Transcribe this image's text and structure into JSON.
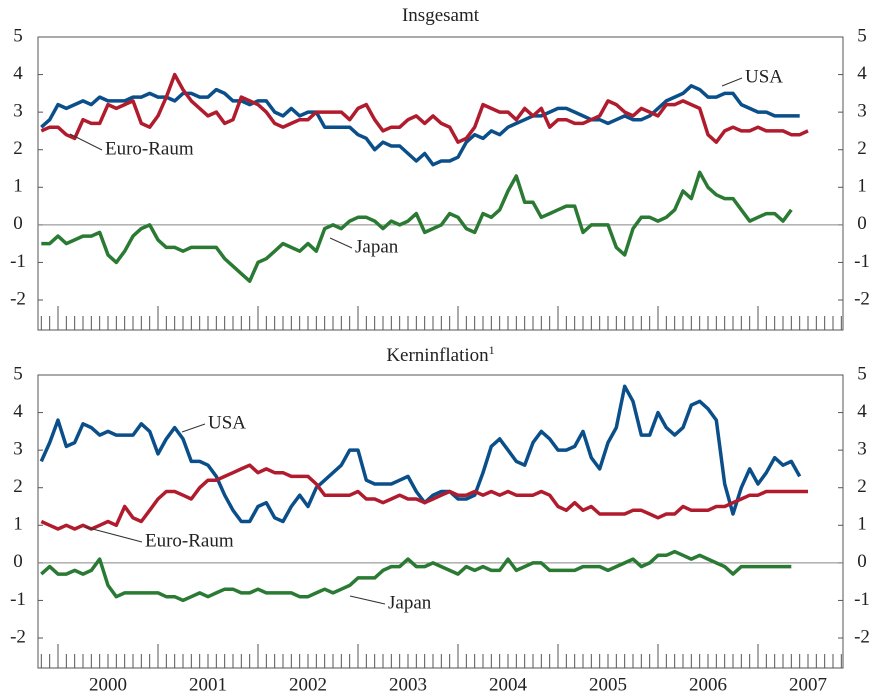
{
  "chart_data": [
    {
      "type": "line",
      "title": "Insgesamt",
      "x": [
        1999.833,
        1999.917,
        2000,
        2000.083,
        2000.167,
        2000.25,
        2000.333,
        2000.417,
        2000.5,
        2000.583,
        2000.667,
        2000.75,
        2000.833,
        2000.917,
        2001,
        2001.083,
        2001.167,
        2001.25,
        2001.333,
        2001.417,
        2001.5,
        2001.583,
        2001.667,
        2001.75,
        2001.833,
        2001.917,
        2002,
        2002.083,
        2002.167,
        2002.25,
        2002.333,
        2002.417,
        2002.5,
        2002.583,
        2002.667,
        2002.75,
        2002.833,
        2002.917,
        2003,
        2003.083,
        2003.167,
        2003.25,
        2003.333,
        2003.417,
        2003.5,
        2003.583,
        2003.667,
        2003.75,
        2003.833,
        2003.917,
        2004,
        2004.083,
        2004.167,
        2004.25,
        2004.333,
        2004.417,
        2004.5,
        2004.583,
        2004.667,
        2004.75,
        2004.833,
        2004.917,
        2005,
        2005.083,
        2005.167,
        2005.25,
        2005.333,
        2005.417,
        2005.5,
        2005.583,
        2005.667,
        2005.75,
        2005.833,
        2005.917,
        2006,
        2006.083,
        2006.167,
        2006.25,
        2006.333,
        2006.417,
        2006.5,
        2006.583,
        2006.667,
        2006.75,
        2006.833,
        2006.917,
        2007,
        2007.083,
        2007.167,
        2007.25,
        2007.333,
        2007.417,
        2007.5
      ],
      "series": [
        {
          "name": "USA",
          "color": "#0b4f8a",
          "values": [
            2.6,
            2.8,
            3.2,
            3.1,
            3.2,
            3.3,
            3.2,
            3.4,
            3.3,
            3.3,
            3.3,
            3.4,
            3.4,
            3.5,
            3.4,
            3.4,
            3.3,
            3.5,
            3.5,
            3.4,
            3.4,
            3.6,
            3.5,
            3.3,
            3.3,
            3.2,
            3.3,
            3.3,
            3.0,
            2.9,
            3.1,
            2.9,
            3.0,
            3.0,
            2.6,
            2.6,
            2.6,
            2.6,
            2.4,
            2.3,
            2.0,
            2.2,
            2.1,
            2.1,
            1.9,
            1.7,
            1.9,
            1.6,
            1.7,
            1.7,
            1.8,
            2.2,
            2.4,
            2.3,
            2.5,
            2.4,
            2.6,
            2.7,
            2.8,
            2.9,
            2.9,
            3.0,
            3.1,
            3.1,
            3.0,
            2.9,
            2.8,
            2.8,
            2.7,
            2.8,
            2.9,
            2.8,
            2.8,
            2.9,
            3.1,
            3.3,
            3.4,
            3.5,
            3.7,
            3.6,
            3.4,
            3.4,
            3.5,
            3.5,
            3.2,
            3.1,
            3.0,
            3.0,
            2.9,
            2.9,
            2.9,
            2.9,
            null
          ]
        },
        {
          "name": "Euro-Raum",
          "color": "#b01c2e",
          "values": [
            2.5,
            2.6,
            2.6,
            2.4,
            2.3,
            2.8,
            2.7,
            2.7,
            3.2,
            3.1,
            3.2,
            3.3,
            2.7,
            2.6,
            2.9,
            3.4,
            4.0,
            3.6,
            3.3,
            3.1,
            2.9,
            3.0,
            2.7,
            2.8,
            3.4,
            3.3,
            3.2,
            3.0,
            2.7,
            2.6,
            2.7,
            2.8,
            2.8,
            3.0,
            3.0,
            3.0,
            3.0,
            2.8,
            3.1,
            3.2,
            2.8,
            2.5,
            2.6,
            2.6,
            2.8,
            2.9,
            2.7,
            2.9,
            2.7,
            2.6,
            2.2,
            2.3,
            2.6,
            3.2,
            3.1,
            3.0,
            3.0,
            2.8,
            3.1,
            2.9,
            3.1,
            2.6,
            2.8,
            2.8,
            2.7,
            2.7,
            2.8,
            2.9,
            3.3,
            3.2,
            3.0,
            2.9,
            3.1,
            3.0,
            2.9,
            3.2,
            3.2,
            3.3,
            3.2,
            3.1,
            2.4,
            2.2,
            2.5,
            2.6,
            2.5,
            2.5,
            2.6,
            2.5,
            2.5,
            2.5,
            2.4,
            2.4,
            2.5
          ]
        },
        {
          "name": "Japan",
          "color": "#2a7a34",
          "values": [
            -0.5,
            -0.5,
            -0.3,
            -0.5,
            -0.4,
            -0.3,
            -0.3,
            -0.2,
            -0.8,
            -1.0,
            -0.7,
            -0.3,
            -0.1,
            0.0,
            -0.4,
            -0.6,
            -0.6,
            -0.7,
            -0.6,
            -0.6,
            -0.6,
            -0.6,
            -0.9,
            -1.1,
            -1.3,
            -1.5,
            -1.0,
            -0.9,
            -0.7,
            -0.5,
            -0.6,
            -0.7,
            -0.5,
            -0.7,
            -0.1,
            0.0,
            -0.1,
            0.1,
            0.2,
            0.2,
            0.1,
            -0.1,
            0.1,
            0.0,
            0.1,
            0.3,
            -0.2,
            -0.1,
            0.0,
            0.3,
            0.2,
            -0.1,
            -0.2,
            0.3,
            0.2,
            0.4,
            0.9,
            1.3,
            0.6,
            0.6,
            0.2,
            0.3,
            0.4,
            0.5,
            0.5,
            -0.2,
            0.0,
            0.0,
            0.0,
            -0.6,
            -0.8,
            -0.1,
            0.2,
            0.2,
            0.1,
            0.2,
            0.4,
            0.9,
            0.7,
            1.4,
            1.0,
            0.8,
            0.7,
            0.7,
            0.4,
            0.1,
            0.2,
            0.3,
            0.3,
            0.1,
            0.4,
            null,
            null
          ]
        }
      ],
      "xlim": [
        1999.8,
        2007.85
      ],
      "ylim": [
        -2,
        5
      ],
      "yticks": [
        -2,
        -1,
        0,
        1,
        2,
        3,
        4,
        5
      ]
    },
    {
      "type": "line",
      "title": "Kerninflation",
      "title_footnote": "1",
      "x": [
        1999.833,
        1999.917,
        2000,
        2000.083,
        2000.167,
        2000.25,
        2000.333,
        2000.417,
        2000.5,
        2000.583,
        2000.667,
        2000.75,
        2000.833,
        2000.917,
        2001,
        2001.083,
        2001.167,
        2001.25,
        2001.333,
        2001.417,
        2001.5,
        2001.583,
        2001.667,
        2001.75,
        2001.833,
        2001.917,
        2002,
        2002.083,
        2002.167,
        2002.25,
        2002.333,
        2002.417,
        2002.5,
        2002.583,
        2002.667,
        2002.75,
        2002.833,
        2002.917,
        2003,
        2003.083,
        2003.167,
        2003.25,
        2003.333,
        2003.417,
        2003.5,
        2003.583,
        2003.667,
        2003.75,
        2003.833,
        2003.917,
        2004,
        2004.083,
        2004.167,
        2004.25,
        2004.333,
        2004.417,
        2004.5,
        2004.583,
        2004.667,
        2004.75,
        2004.833,
        2004.917,
        2005,
        2005.083,
        2005.167,
        2005.25,
        2005.333,
        2005.417,
        2005.5,
        2005.583,
        2005.667,
        2005.75,
        2005.833,
        2005.917,
        2006,
        2006.083,
        2006.167,
        2006.25,
        2006.333,
        2006.417,
        2006.5,
        2006.583,
        2006.667,
        2006.75,
        2006.833,
        2006.917,
        2007,
        2007.083,
        2007.167,
        2007.25,
        2007.333,
        2007.417,
        2007.5
      ],
      "series": [
        {
          "name": "USA",
          "color": "#0b4f8a",
          "values": [
            2.7,
            3.2,
            3.8,
            3.1,
            3.2,
            3.7,
            3.6,
            3.4,
            3.5,
            3.4,
            3.4,
            3.4,
            3.7,
            3.5,
            2.9,
            3.3,
            3.6,
            3.3,
            2.7,
            2.7,
            2.6,
            2.3,
            1.8,
            1.4,
            1.1,
            1.1,
            1.5,
            1.6,
            1.2,
            1.1,
            1.5,
            1.8,
            1.5,
            2.0,
            2.2,
            2.4,
            2.6,
            3.0,
            3.0,
            2.2,
            2.1,
            2.1,
            2.1,
            2.2,
            2.3,
            1.9,
            1.6,
            1.8,
            1.9,
            1.9,
            1.7,
            1.7,
            1.8,
            2.4,
            3.1,
            3.3,
            3.0,
            2.7,
            2.6,
            3.2,
            3.5,
            3.3,
            3.0,
            3.0,
            3.1,
            3.5,
            2.8,
            2.5,
            3.2,
            3.6,
            4.7,
            4.3,
            3.4,
            3.4,
            4.0,
            3.6,
            3.4,
            3.6,
            4.2,
            4.3,
            4.1,
            3.8,
            2.1,
            1.3,
            2.0,
            2.5,
            2.1,
            2.4,
            2.8,
            2.6,
            2.7,
            2.3,
            null
          ]
        },
        {
          "name": "Euro-Raum",
          "color": "#b01c2e",
          "values": [
            1.1,
            1.0,
            0.9,
            1.0,
            0.9,
            1.0,
            0.9,
            1.0,
            1.1,
            1.0,
            1.5,
            1.2,
            1.1,
            1.4,
            1.7,
            1.9,
            1.9,
            1.8,
            1.7,
            2.0,
            2.2,
            2.2,
            2.3,
            2.4,
            2.5,
            2.6,
            2.4,
            2.5,
            2.4,
            2.4,
            2.3,
            2.3,
            2.3,
            2.1,
            1.8,
            1.8,
            1.8,
            1.8,
            1.9,
            1.7,
            1.7,
            1.6,
            1.7,
            1.8,
            1.7,
            1.7,
            1.6,
            1.7,
            1.8,
            1.9,
            1.8,
            1.8,
            1.9,
            1.8,
            1.9,
            1.8,
            1.9,
            1.8,
            1.8,
            1.8,
            1.9,
            1.8,
            1.5,
            1.4,
            1.6,
            1.4,
            1.5,
            1.3,
            1.3,
            1.3,
            1.3,
            1.4,
            1.4,
            1.3,
            1.2,
            1.3,
            1.3,
            1.5,
            1.4,
            1.4,
            1.4,
            1.5,
            1.5,
            1.6,
            1.7,
            1.8,
            1.8,
            1.9,
            1.9,
            1.9,
            1.9,
            1.9,
            1.9
          ]
        },
        {
          "name": "Japan",
          "color": "#2a7a34",
          "values": [
            -0.3,
            -0.1,
            -0.3,
            -0.3,
            -0.2,
            -0.3,
            -0.2,
            0.1,
            -0.6,
            -0.9,
            -0.8,
            -0.8,
            -0.8,
            -0.8,
            -0.8,
            -0.9,
            -0.9,
            -1.0,
            -0.9,
            -0.8,
            -0.9,
            -0.8,
            -0.7,
            -0.7,
            -0.8,
            -0.8,
            -0.7,
            -0.8,
            -0.8,
            -0.8,
            -0.8,
            -0.9,
            -0.9,
            -0.8,
            -0.7,
            -0.8,
            -0.7,
            -0.6,
            -0.4,
            -0.4,
            -0.4,
            -0.2,
            -0.1,
            -0.1,
            0.1,
            -0.1,
            -0.1,
            0.0,
            -0.1,
            -0.2,
            -0.3,
            -0.1,
            -0.2,
            -0.1,
            -0.2,
            -0.2,
            0.1,
            -0.2,
            -0.1,
            0.0,
            0.0,
            -0.2,
            -0.2,
            -0.2,
            -0.2,
            -0.1,
            -0.1,
            -0.1,
            -0.2,
            -0.1,
            0.0,
            0.1,
            -0.1,
            0.0,
            0.2,
            0.2,
            0.3,
            0.2,
            0.1,
            0.2,
            0.1,
            0.0,
            -0.1,
            -0.3,
            -0.1,
            -0.1,
            -0.1,
            -0.1,
            -0.1,
            -0.1,
            -0.1,
            null,
            null
          ]
        }
      ],
      "xlim": [
        1999.8,
        2007.85
      ],
      "xticks": [
        {
          "value": 2000.5,
          "label": "2000"
        },
        {
          "value": 2001.5,
          "label": "2001"
        },
        {
          "value": 2002.5,
          "label": "2002"
        },
        {
          "value": 2003.5,
          "label": "2003"
        },
        {
          "value": 2004.5,
          "label": "2004"
        },
        {
          "value": 2005.5,
          "label": "2005"
        },
        {
          "value": 2006.5,
          "label": "2006"
        },
        {
          "value": 2007.5,
          "label": "2007"
        }
      ],
      "ylim": [
        -2,
        5
      ],
      "yticks": [
        -2,
        -1,
        0,
        1,
        2,
        3,
        4,
        5
      ]
    }
  ]
}
